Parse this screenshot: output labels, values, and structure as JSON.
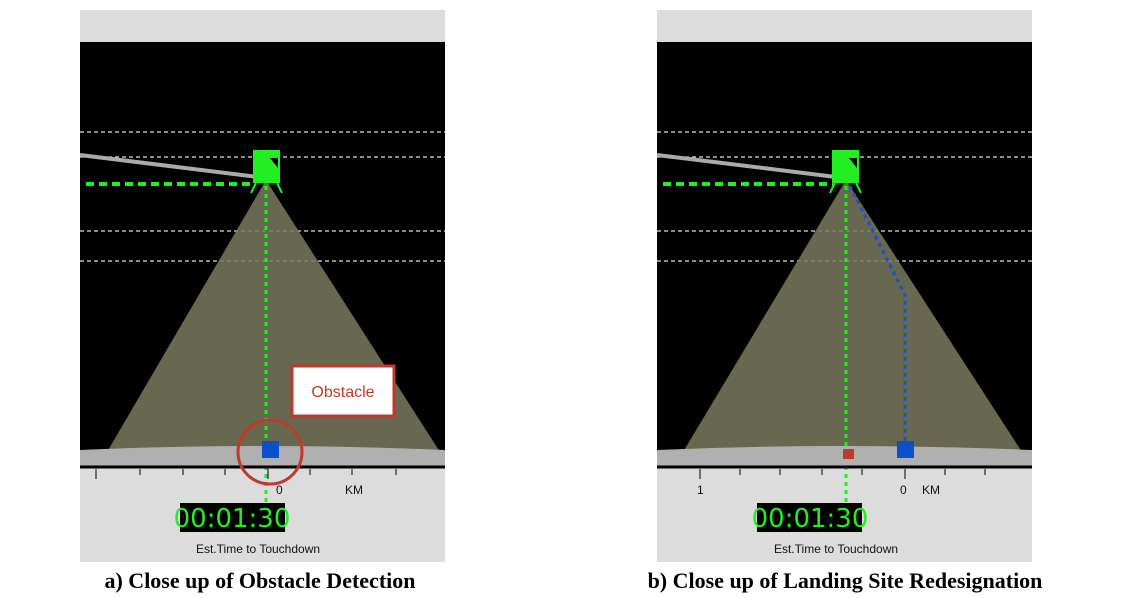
{
  "panels": [
    {
      "annotation": "Obstacle",
      "scale": {
        "zero": "0",
        "unit": "KM"
      },
      "timer": "00:01:30",
      "timer_label": "Est.Time to Touchdown",
      "caption": "a) Close up of Obstacle Detection"
    },
    {
      "scale": {
        "one": "1",
        "zero": "0",
        "unit": "KM"
      },
      "timer": "00:01:30",
      "timer_label": "Est.Time to Touchdown",
      "caption": "b) Close up of Landing Site Redesignation"
    }
  ]
}
